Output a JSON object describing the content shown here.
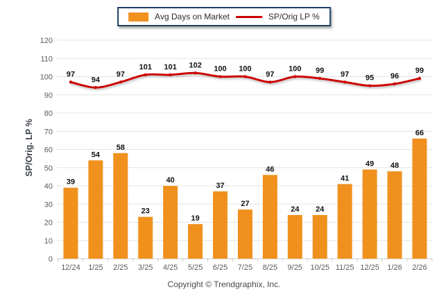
{
  "chart_data": {
    "type": "bar",
    "categories": [
      "12/24",
      "1/25",
      "2/25",
      "3/25",
      "4/25",
      "5/25",
      "6/25",
      "7/25",
      "8/25",
      "9/25",
      "10/25",
      "11/25",
      "12/25",
      "1/26",
      "2/26"
    ],
    "series": [
      {
        "name": "Avg Days on Market",
        "type": "bar",
        "color": "#F0911E",
        "values": [
          39,
          54,
          58,
          23,
          40,
          19,
          37,
          27,
          46,
          24,
          24,
          41,
          49,
          48,
          66
        ]
      },
      {
        "name": "SP/Orig LP %",
        "type": "line",
        "color": "#CC0000",
        "values": [
          97,
          94,
          97,
          101,
          101,
          102,
          100,
          100,
          97,
          100,
          99,
          97,
          95,
          96,
          99
        ]
      }
    ],
    "title": "",
    "xlabel": "",
    "ylabel": "SP/Orig. LP %",
    "ylim": [
      0,
      120
    ],
    "ytick_step": 10,
    "grid": true,
    "legend_position": "top-center",
    "value_labels": true
  },
  "footer": {
    "copyright": "Copyright © Trendgraphix, Inc."
  },
  "colors": {
    "bar": "#F0911E",
    "line": "#CC0000",
    "grid": "#e3e3e3",
    "baseline": "#c9c9c9",
    "tick_text": "#595959",
    "value_text": "#111111",
    "legend_border": "#1e3c64"
  }
}
